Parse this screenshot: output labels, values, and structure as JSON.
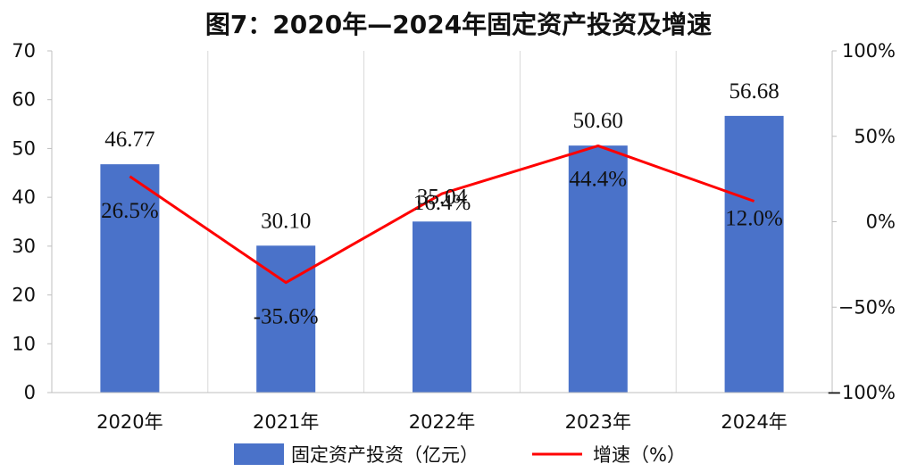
{
  "chart_data": {
    "type": "bar",
    "title": "图7：2020年—2024年固定资产投资及增速",
    "categories": [
      "2020年",
      "2021年",
      "2022年",
      "2023年",
      "2024年"
    ],
    "series": [
      {
        "name": "固定资产投资（亿元）",
        "type": "bar",
        "axis": "left",
        "color": "#4a72c9",
        "values": [
          46.77,
          30.1,
          35.04,
          50.6,
          56.68
        ],
        "labels": [
          "46.77",
          "30.10",
          "35.04",
          "50.60",
          "56.68"
        ]
      },
      {
        "name": "增速（%）",
        "type": "line",
        "axis": "right",
        "color": "#ff0000",
        "values": [
          26.5,
          -35.6,
          16.4,
          44.4,
          12.0
        ],
        "labels": [
          "26.5%",
          "-35.6%",
          "16.4%",
          "44.4%",
          "12.0%"
        ]
      }
    ],
    "y_left": {
      "ylim": [
        0,
        70
      ],
      "ticks": [
        0,
        10,
        20,
        30,
        40,
        50,
        60,
        70
      ],
      "tick_labels": [
        "0",
        "10",
        "20",
        "30",
        "40",
        "50",
        "60",
        "70"
      ]
    },
    "y_right": {
      "ylim": [
        -100,
        100
      ],
      "ticks": [
        -100,
        -50,
        0,
        50,
        100
      ],
      "tick_labels": [
        "−100%",
        "−50%",
        "0%",
        "50%",
        "100%"
      ]
    },
    "grid": "vertical",
    "legend_position": "bottom"
  }
}
